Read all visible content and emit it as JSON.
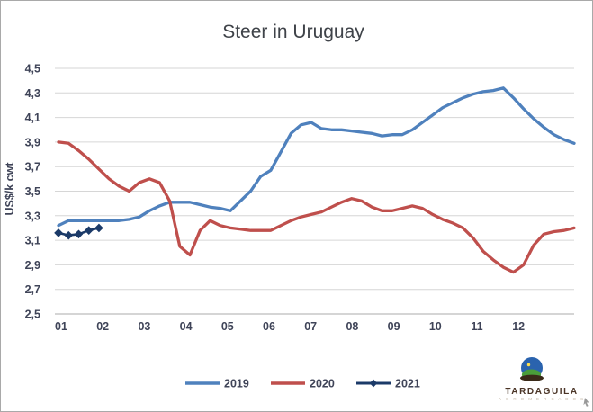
{
  "title": "Steer in Uruguay",
  "y_axis": {
    "label": "US$/k cwt",
    "tick_labels": [
      "4,5",
      "4,3",
      "4,1",
      "3,9",
      "3,7",
      "3,5",
      "3,3",
      "3,1",
      "2,9",
      "2,7",
      "2,5"
    ],
    "tick_values": [
      4.5,
      4.3,
      4.1,
      3.9,
      3.7,
      3.5,
      3.3,
      3.1,
      2.9,
      2.7,
      2.5
    ]
  },
  "x_axis": {
    "tick_labels": [
      "01",
      "02",
      "03",
      "04",
      "05",
      "06",
      "07",
      "08",
      "09",
      "10",
      "11",
      "12"
    ]
  },
  "colors": {
    "series_2019": "#4f81bd",
    "series_2020": "#bf4f4c",
    "series_2021": "#1b3a68",
    "gridline": "#d6d6d6",
    "axis_line": "#ababab",
    "text": "#3f4458"
  },
  "logo": {
    "brand": "TARDAGUILA",
    "subtext": "A G R O M E R C A D O S"
  },
  "chart_data": {
    "type": "line",
    "title": "Steer in Uruguay",
    "xlabel": "",
    "ylabel": "US$/k cwt",
    "ylim": [
      2.5,
      4.5
    ],
    "y_tick_step": 0.2,
    "grid": "horizontal",
    "legend_position": "bottom",
    "x_unit": "weeks, axis labeled by month 01-12",
    "series": [
      {
        "name": "2019",
        "color": "#4f81bd",
        "marker": "none",
        "values": [
          3.22,
          3.26,
          3.26,
          3.26,
          3.26,
          3.26,
          3.26,
          3.27,
          3.29,
          3.34,
          3.38,
          3.41,
          3.41,
          3.41,
          3.39,
          3.37,
          3.36,
          3.34,
          3.42,
          3.5,
          3.62,
          3.67,
          3.82,
          3.97,
          4.04,
          4.06,
          4.01,
          4.0,
          4.0,
          3.99,
          3.98,
          3.97,
          3.95,
          3.96,
          3.96,
          4.0,
          4.06,
          4.12,
          4.18,
          4.22,
          4.26,
          4.29,
          4.31,
          4.32,
          4.34,
          4.26,
          4.17,
          4.09,
          4.02,
          3.96,
          3.92,
          3.89
        ]
      },
      {
        "name": "2020",
        "color": "#bf4f4c",
        "marker": "none",
        "values": [
          3.9,
          3.89,
          3.83,
          3.76,
          3.68,
          3.6,
          3.54,
          3.5,
          3.57,
          3.6,
          3.57,
          3.42,
          3.05,
          2.98,
          3.18,
          3.26,
          3.22,
          3.2,
          3.19,
          3.18,
          3.18,
          3.18,
          3.22,
          3.26,
          3.29,
          3.31,
          3.33,
          3.37,
          3.41,
          3.44,
          3.42,
          3.37,
          3.34,
          3.34,
          3.36,
          3.38,
          3.36,
          3.31,
          3.27,
          3.24,
          3.2,
          3.12,
          3.01,
          2.94,
          2.88,
          2.84,
          2.9,
          3.06,
          3.15,
          3.17,
          3.18,
          3.2
        ]
      },
      {
        "name": "2021",
        "color": "#1b3a68",
        "marker": "diamond",
        "values": [
          3.16,
          3.14,
          3.15,
          3.18,
          3.2
        ]
      }
    ]
  }
}
